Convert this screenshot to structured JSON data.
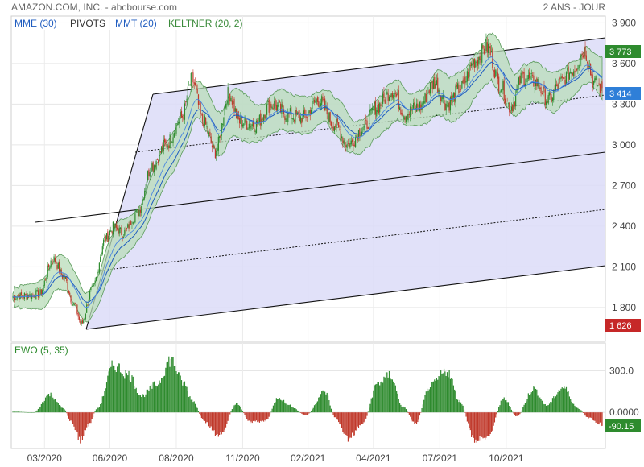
{
  "header": {
    "title": "AMAZON.COM, INC. - abcbourse.com",
    "period": "2 ANS - JOUR"
  },
  "legend": {
    "mme": {
      "label": "MME (30)",
      "color": "#1e5bbf"
    },
    "pivots": {
      "label": "PIVOTS",
      "color": "#333333"
    },
    "mmt": {
      "label": "MMT (20)",
      "color": "#1e5bbf"
    },
    "keltner": {
      "label": "KELTNER (20, 2)",
      "color": "#3a8a3a"
    }
  },
  "tags": {
    "last_high": "3 773",
    "current": "3 414",
    "low": "1 626",
    "ewo_value": "-90.15"
  },
  "ewo_label": "EWO (5, 35)",
  "colors": {
    "up": "#2e8b2e",
    "down": "#c0392b",
    "channel_fill": "#dcdcf8",
    "keltner_fill": "#b8dcb8",
    "ma": "#1e5bbf"
  },
  "chart_data": {
    "type": "candlestick",
    "main_yticks": [
      "3 900",
      "3 600",
      "3 300",
      "3 000",
      "2 700",
      "2 400",
      "2 100",
      "1 800"
    ],
    "main_yticks_values": [
      3900,
      3600,
      3300,
      3000,
      2700,
      2400,
      2100,
      1800
    ],
    "main_ylim": [
      1550,
      3950
    ],
    "ewo_yticks": [
      "300.0",
      "0.0000"
    ],
    "ewo_yticks_values": [
      300,
      0
    ],
    "ewo_ylim": [
      -260,
      500
    ],
    "x_labels": [
      "03/2020",
      "06/2020",
      "08/2020",
      "11/2020",
      "02/2021",
      "04/2021",
      "07/2021",
      "10/2021"
    ],
    "x_label_index": [
      30,
      92,
      155,
      218,
      280,
      342,
      405,
      468
    ],
    "n_bars": 560,
    "price_anchors": [
      [
        0,
        1880
      ],
      [
        15,
        1890
      ],
      [
        25,
        1900
      ],
      [
        38,
        2160
      ],
      [
        48,
        2030
      ],
      [
        58,
        1820
      ],
      [
        65,
        1680
      ],
      [
        75,
        1930
      ],
      [
        88,
        2310
      ],
      [
        95,
        2390
      ],
      [
        105,
        2350
      ],
      [
        118,
        2500
      ],
      [
        132,
        2850
      ],
      [
        145,
        3000
      ],
      [
        160,
        3200
      ],
      [
        170,
        3480
      ],
      [
        180,
        3180
      ],
      [
        192,
        2950
      ],
      [
        205,
        3380
      ],
      [
        215,
        3170
      ],
      [
        230,
        3150
      ],
      [
        245,
        3300
      ],
      [
        262,
        3220
      ],
      [
        275,
        3200
      ],
      [
        290,
        3330
      ],
      [
        305,
        3150
      ],
      [
        318,
        3000
      ],
      [
        332,
        3120
      ],
      [
        345,
        3280
      ],
      [
        360,
        3400
      ],
      [
        372,
        3230
      ],
      [
        385,
        3280
      ],
      [
        400,
        3460
      ],
      [
        412,
        3300
      ],
      [
        425,
        3420
      ],
      [
        438,
        3620
      ],
      [
        450,
        3720
      ],
      [
        462,
        3450
      ],
      [
        472,
        3280
      ],
      [
        484,
        3500
      ],
      [
        496,
        3460
      ],
      [
        508,
        3330
      ],
      [
        520,
        3460
      ],
      [
        532,
        3560
      ],
      [
        542,
        3700
      ],
      [
        552,
        3450
      ],
      [
        560,
        3414
      ]
    ],
    "ewo_anchors": [
      [
        0,
        5
      ],
      [
        20,
        0
      ],
      [
        35,
        130
      ],
      [
        48,
        30
      ],
      [
        55,
        -60
      ],
      [
        64,
        -200
      ],
      [
        72,
        -90
      ],
      [
        80,
        30
      ],
      [
        96,
        340
      ],
      [
        110,
        270
      ],
      [
        122,
        120
      ],
      [
        136,
        200
      ],
      [
        150,
        380
      ],
      [
        162,
        210
      ],
      [
        170,
        90
      ],
      [
        182,
        -70
      ],
      [
        196,
        -170
      ],
      [
        212,
        60
      ],
      [
        226,
        -70
      ],
      [
        240,
        -60
      ],
      [
        252,
        110
      ],
      [
        262,
        50
      ],
      [
        278,
        -20
      ],
      [
        296,
        150
      ],
      [
        306,
        -40
      ],
      [
        318,
        -190
      ],
      [
        332,
        -80
      ],
      [
        346,
        210
      ],
      [
        358,
        270
      ],
      [
        370,
        40
      ],
      [
        382,
        -80
      ],
      [
        396,
        190
      ],
      [
        412,
        300
      ],
      [
        424,
        80
      ],
      [
        438,
        -200
      ],
      [
        450,
        -180
      ],
      [
        466,
        100
      ],
      [
        478,
        -30
      ],
      [
        494,
        170
      ],
      [
        506,
        50
      ],
      [
        522,
        180
      ],
      [
        536,
        30
      ],
      [
        546,
        -40
      ],
      [
        560,
        -90
      ]
    ]
  }
}
